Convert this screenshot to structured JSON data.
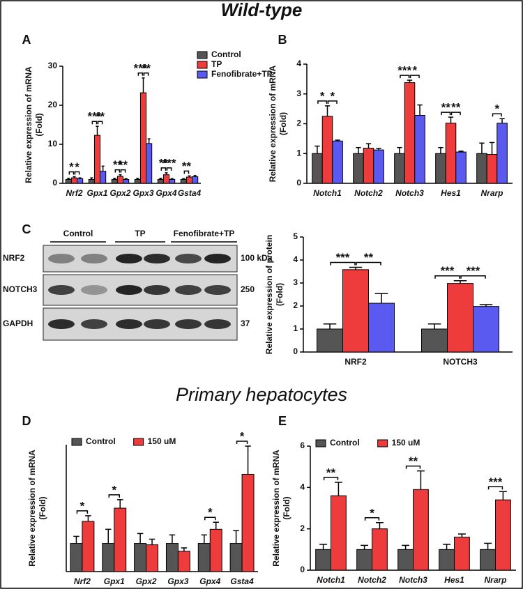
{
  "headings": {
    "top": "Wild-type",
    "bottom": "Primary hepatocytes"
  },
  "blot": {
    "panel": "C",
    "columns": [
      "Control",
      "TP",
      "Fenofibrate+TP"
    ],
    "rows": [
      {
        "label": "NRF2",
        "size": "100 kDa"
      },
      {
        "label": "NOTCH3",
        "size": "250"
      },
      {
        "label": "GAPDH",
        "size": "37"
      }
    ]
  },
  "chart_data": [
    {
      "type": "bar",
      "panel": "A",
      "ylabel": [
        "Relative expression of mRNA",
        "(Fold)"
      ],
      "italic_categories": true,
      "categories": [
        "Nrf2",
        "Gpx1",
        "Gpx2",
        "Gpx3",
        "Gpx4",
        "Gsta4"
      ],
      "ylim": [
        0,
        30
      ],
      "yticks": [
        0,
        10,
        20,
        30
      ],
      "legend": "top-right",
      "legend_layout": "vertical",
      "series": [
        {
          "name": "Control",
          "color": "#555555",
          "values": [
            1,
            1,
            1,
            1,
            1,
            1
          ],
          "errors": [
            0.3,
            0.4,
            0.3,
            0.3,
            0.3,
            0.2
          ]
        },
        {
          "name": "TP",
          "color": "#ee3b3b",
          "values": [
            1.4,
            12.3,
            1.8,
            23.2,
            2.2,
            1.6
          ],
          "errors": [
            0.3,
            2.3,
            0.4,
            3.8,
            0.5,
            0.3
          ]
        },
        {
          "name": "Fenofibrate+TP",
          "color": "#5a5af0",
          "values": [
            1.2,
            3.1,
            1.0,
            10.2,
            1.0,
            1.7
          ],
          "errors": [
            0.2,
            1.3,
            0.2,
            1.2,
            0.2,
            0.3
          ]
        }
      ],
      "brackets": [
        {
          "label": "*",
          "category": 0,
          "series": [
            0,
            1
          ]
        },
        {
          "label": "*",
          "category": 0,
          "series": [
            1,
            2
          ]
        },
        {
          "label": "***",
          "category": 1,
          "series": [
            0,
            1
          ]
        },
        {
          "label": "**",
          "category": 1,
          "series": [
            1,
            2
          ]
        },
        {
          "label": "**",
          "category": 2,
          "series": [
            0,
            1
          ]
        },
        {
          "label": "**",
          "category": 2,
          "series": [
            1,
            2
          ]
        },
        {
          "label": "***",
          "category": 3,
          "series": [
            0,
            1
          ]
        },
        {
          "label": "**",
          "category": 3,
          "series": [
            1,
            2
          ]
        },
        {
          "label": "**",
          "category": 4,
          "series": [
            0,
            1
          ]
        },
        {
          "label": "***",
          "category": 4,
          "series": [
            1,
            2
          ]
        },
        {
          "label": "**",
          "category": 5,
          "series": [
            0,
            1
          ]
        }
      ]
    },
    {
      "type": "bar",
      "panel": "B",
      "ylabel": [
        "Relative expression of mRNA",
        "(Fold)"
      ],
      "italic_categories": true,
      "categories": [
        "Notch1",
        "Notch2",
        "Notch3",
        "Hes1",
        "Nrarp"
      ],
      "ylim": [
        0,
        4
      ],
      "yticks": [
        0,
        1,
        2,
        3,
        4
      ],
      "series": [
        {
          "color": "#555555",
          "values": [
            1,
            1,
            1,
            1,
            1
          ],
          "errors": [
            0.25,
            0.2,
            0.2,
            0.2,
            0.35
          ]
        },
        {
          "color": "#ee3b3b",
          "values": [
            2.25,
            1.18,
            3.38,
            2.02,
            0.97
          ],
          "errors": [
            0.35,
            0.15,
            0.08,
            0.2,
            0.4
          ]
        },
        {
          "color": "#5a5af0",
          "values": [
            1.42,
            1.12,
            2.28,
            1.05,
            2.02
          ],
          "errors": [
            0.03,
            0.05,
            0.35,
            0.03,
            0.15
          ]
        }
      ],
      "brackets": [
        {
          "label": "*",
          "category": 0,
          "series": [
            0,
            1
          ]
        },
        {
          "label": "*",
          "category": 0,
          "series": [
            1,
            2
          ]
        },
        {
          "label": "***",
          "category": 2,
          "series": [
            0,
            1
          ]
        },
        {
          "label": "*",
          "category": 2,
          "series": [
            1,
            2
          ]
        },
        {
          "label": "**",
          "category": 3,
          "series": [
            0,
            1
          ]
        },
        {
          "label": "**",
          "category": 3,
          "series": [
            1,
            2
          ]
        },
        {
          "label": "*",
          "category": 4,
          "series": [
            1,
            2
          ]
        }
      ]
    },
    {
      "type": "bar",
      "ylabel": [
        "Relative expression of protein",
        "(Fold)"
      ],
      "italic_categories": false,
      "categories": [
        "NRF2",
        "NOTCH3"
      ],
      "ylim": [
        0,
        5
      ],
      "yticks": [
        0,
        1,
        2,
        3,
        4,
        5
      ],
      "series": [
        {
          "color": "#555555",
          "values": [
            1,
            1
          ],
          "errors": [
            0.22,
            0.22
          ]
        },
        {
          "color": "#ee3b3b",
          "values": [
            3.58,
            2.98
          ],
          "errors": [
            0.1,
            0.12
          ]
        },
        {
          "color": "#5a5af0",
          "values": [
            2.12,
            1.98
          ],
          "errors": [
            0.42,
            0.08
          ]
        }
      ],
      "brackets": [
        {
          "label": "***",
          "category": 0,
          "series": [
            0,
            1
          ]
        },
        {
          "label": "**",
          "category": 0,
          "series": [
            1,
            2
          ]
        },
        {
          "label": "***",
          "category": 1,
          "series": [
            0,
            1
          ]
        },
        {
          "label": "***",
          "category": 1,
          "series": [
            1,
            2
          ]
        }
      ]
    },
    {
      "type": "bar",
      "panel": "D",
      "ylabel": [
        "Relative expression of mRNA",
        "(Fold)"
      ],
      "italic_categories": true,
      "categories": [
        "Nrf2",
        "Gpx1",
        "Gpx2",
        "Gpx3",
        "Gpx4",
        "Gsta4"
      ],
      "ylim": [
        0,
        4.5
      ],
      "legend": "top-left",
      "legend_layout": "horizontal",
      "series": [
        {
          "name": "Control",
          "color": "#555555",
          "values": [
            1,
            1,
            1,
            1,
            1,
            1
          ],
          "errors": [
            0.25,
            0.5,
            0.35,
            0.3,
            0.3,
            0.45
          ]
        },
        {
          "name": "150 uM",
          "color": "#ee3b3b",
          "values": [
            1.78,
            2.25,
            0.95,
            0.72,
            1.5,
            3.45
          ],
          "errors": [
            0.2,
            0.3,
            0.2,
            0.12,
            0.25,
            1.0
          ]
        }
      ],
      "brackets": [
        {
          "label": "*",
          "category": 0,
          "series": [
            0,
            1
          ]
        },
        {
          "label": "*",
          "category": 1,
          "series": [
            0,
            1
          ]
        },
        {
          "label": "*",
          "category": 4,
          "series": [
            0,
            1
          ]
        },
        {
          "label": "*",
          "category": 5,
          "series": [
            0,
            1
          ]
        }
      ]
    },
    {
      "type": "bar",
      "panel": "E",
      "ylabel": [
        "Relative expression of mRNA",
        "(Fold)"
      ],
      "italic_categories": true,
      "categories": [
        "Notch1",
        "Notch2",
        "Notch3",
        "Hes1",
        "Nrarp"
      ],
      "ylim": [
        0,
        6
      ],
      "yticks": [
        0,
        2,
        4,
        6
      ],
      "legend": "top-left",
      "legend_layout": "horizontal",
      "series": [
        {
          "name": "Control",
          "color": "#555555",
          "values": [
            1,
            1,
            1,
            1,
            1
          ],
          "errors": [
            0.25,
            0.2,
            0.2,
            0.25,
            0.3
          ]
        },
        {
          "name": "150 uM",
          "color": "#ee3b3b",
          "values": [
            3.6,
            2.0,
            3.9,
            1.6,
            3.4
          ],
          "errors": [
            0.65,
            0.3,
            0.9,
            0.15,
            0.4
          ]
        }
      ],
      "brackets": [
        {
          "label": "**",
          "category": 0,
          "series": [
            0,
            1
          ]
        },
        {
          "label": "*",
          "category": 1,
          "series": [
            0,
            1
          ]
        },
        {
          "label": "**",
          "category": 2,
          "series": [
            0,
            1
          ]
        },
        {
          "label": "***",
          "category": 4,
          "series": [
            0,
            1
          ]
        }
      ]
    }
  ]
}
